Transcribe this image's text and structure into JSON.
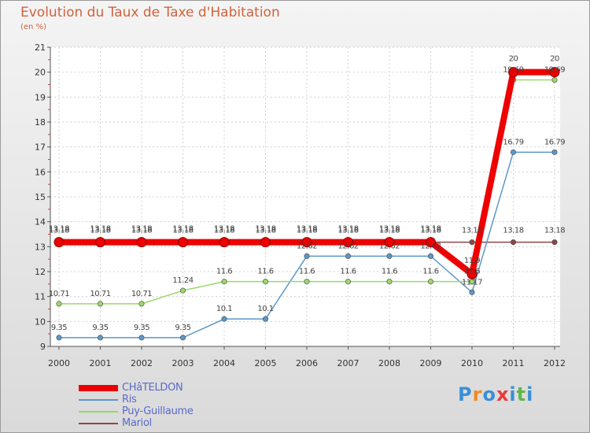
{
  "header": {
    "title": "Evolution du Taux de Taxe d'Habitation",
    "subtitle": "(en %)"
  },
  "logo": {
    "text": "Proxiti"
  },
  "chart_data": {
    "type": "line",
    "title": "Evolution du Taux de Taxe d'Habitation",
    "ylabel": "(en %)",
    "xlabel": "",
    "ylim": [
      9,
      21
    ],
    "y_ticks": [
      9,
      10,
      11,
      12,
      13,
      14,
      15,
      16,
      17,
      18,
      19,
      20,
      21
    ],
    "categories": [
      "2000",
      "2001",
      "2002",
      "2003",
      "2004",
      "2005",
      "2006",
      "2007",
      "2008",
      "2009",
      "2010",
      "2011",
      "2012"
    ],
    "legend_position": "bottom-left",
    "series": [
      {
        "name": "Mariol",
        "color": "#8c4848",
        "values": [
          13.18,
          13.18,
          13.18,
          13.18,
          13.18,
          13.18,
          13.18,
          13.18,
          13.18,
          13.18,
          13.18,
          13.18,
          13.18
        ],
        "labels": [
          "13.18",
          "13.18",
          "13.18",
          "13.18",
          "13.18",
          "13.18",
          "13.18",
          "13.18",
          "13.18",
          "13.18",
          "13.18",
          "13.18",
          "13.18"
        ]
      },
      {
        "name": "Ris",
        "color": "#5c98c8",
        "values": [
          9.35,
          9.35,
          9.35,
          9.35,
          10.1,
          10.1,
          12.62,
          12.62,
          12.62,
          12.62,
          11.17,
          16.79,
          16.79
        ],
        "labels": [
          "9.35",
          "9.35",
          "9.35",
          "9.35",
          "10.1",
          "10.1",
          "12.62",
          "12.62",
          "12.62",
          "12.62",
          "11.17",
          "16.79",
          "16.79"
        ]
      },
      {
        "name": "Puy-Guillaume",
        "color": "#9ad86a",
        "values": [
          10.71,
          10.71,
          10.71,
          11.24,
          11.6,
          11.6,
          11.6,
          11.6,
          11.6,
          11.6,
          11.6,
          19.69,
          19.69
        ],
        "labels": [
          "10.71",
          "10.71",
          "10.71",
          "11.24",
          "11.6",
          "11.6",
          "11.6",
          "11.6",
          "11.6",
          "11.6",
          "11.6",
          "19.69",
          "19.69"
        ]
      },
      {
        "name": "CHâTELDON",
        "color": "#ee0000",
        "values": [
          13.18,
          13.18,
          13.18,
          13.18,
          13.18,
          13.18,
          13.18,
          13.18,
          13.18,
          13.18,
          11.9,
          20,
          20
        ],
        "labels": [
          "13.18",
          "13.18",
          "13.18",
          "13.18",
          "13.18",
          "13.18",
          "13.18",
          "13.18",
          "13.18",
          "13.18",
          "11.9",
          "20",
          "20"
        ]
      }
    ],
    "legend": [
      "CHâTELDON",
      "Ris",
      "Puy-Guillaume",
      "Mariol"
    ]
  }
}
